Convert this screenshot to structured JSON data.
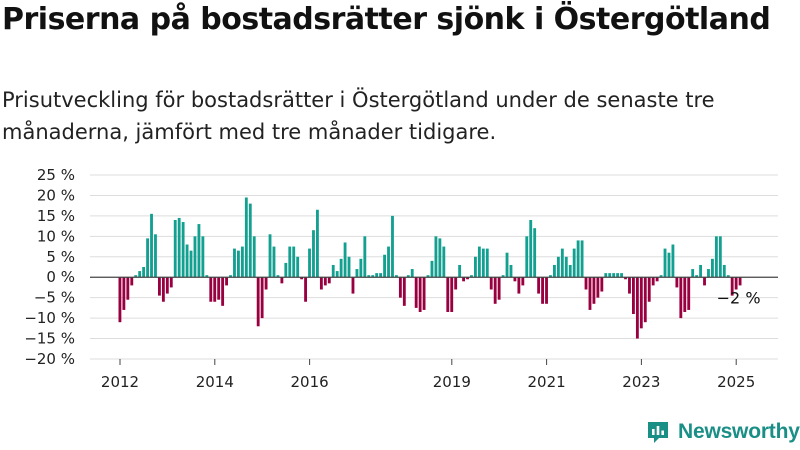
{
  "header": {
    "title": "Priserna på bostadsrätter sjönk i Östergötland",
    "subtitle": "Prisutveckling för bostadsrätter i Östergötland under de senaste tre månaderna, jämfört med tre månader tidigare."
  },
  "brand": {
    "name": "Newsworthy",
    "icon": "bar-chart-logo-icon",
    "color": "#1a8f86"
  },
  "chart_data": {
    "type": "bar",
    "ylim": [
      -20,
      25
    ],
    "yticks": [
      -20,
      -15,
      -10,
      -5,
      0,
      5,
      10,
      15,
      20,
      25
    ],
    "ytick_labels": [
      "−20 %",
      "−15 %",
      "−10 %",
      "−5 %",
      "0 %",
      "5 %",
      "10 %",
      "15 %",
      "20 %",
      "25 %"
    ],
    "xticks": [
      2012,
      2014,
      2016,
      2019,
      2021,
      2023,
      2025
    ],
    "xtick_labels": [
      "2012",
      "2014",
      "2016",
      "2019",
      "2021",
      "2023",
      "2025"
    ],
    "start": "2012-01",
    "grid": true,
    "annotation": "−2 %",
    "colors": {
      "positive": "#14a090",
      "negative": "#990040",
      "grid": "#dddddd",
      "axis": "#444444"
    },
    "values": [
      -11,
      -8,
      -5.5,
      -2,
      0.5,
      1.5,
      2.5,
      9.5,
      15.5,
      10.5,
      -4.5,
      -6,
      -4,
      -2.5,
      14,
      14.5,
      13.5,
      8,
      6.5,
      10,
      13,
      10,
      0.5,
      -6,
      -6,
      -5.5,
      -7,
      -2,
      0.5,
      7,
      6.5,
      7.5,
      19.5,
      18,
      10,
      -12,
      -10,
      -3,
      10.5,
      7.5,
      0.5,
      -1.5,
      3.5,
      7.5,
      7.5,
      5,
      -0.5,
      -6,
      7,
      11.5,
      16.5,
      -3,
      -2,
      -1.5,
      3,
      1.5,
      4.5,
      8.5,
      5,
      -4,
      2,
      4.5,
      10,
      0.5,
      0.5,
      1,
      1,
      5.5,
      7.5,
      15,
      0.5,
      -5,
      -7,
      0.5,
      2,
      -7.5,
      -8.5,
      -8,
      0.5,
      4,
      10,
      9.5,
      7.5,
      -8.5,
      -8.5,
      -3,
      3,
      -1,
      -0.5,
      0.5,
      5,
      7.5,
      7,
      7,
      -3,
      -6.5,
      -5.5,
      0.5,
      6,
      3,
      -1,
      -4,
      -2,
      10,
      14,
      12,
      -4,
      -6.5,
      -6.5,
      0.5,
      3,
      5,
      7,
      5,
      3,
      7,
      9,
      9,
      -3,
      -8,
      -6.5,
      -5,
      -3.5,
      1,
      1,
      1,
      1,
      1,
      -0.5,
      -4,
      -9,
      -15,
      -12.5,
      -11,
      -6,
      -2,
      -1,
      0.5,
      7,
      6,
      8,
      -2.5,
      -10,
      -8.5,
      -8,
      2,
      0.5,
      3,
      -2,
      2,
      4.5,
      10,
      10,
      3,
      0.5,
      -4.5,
      -3,
      -2
    ]
  }
}
